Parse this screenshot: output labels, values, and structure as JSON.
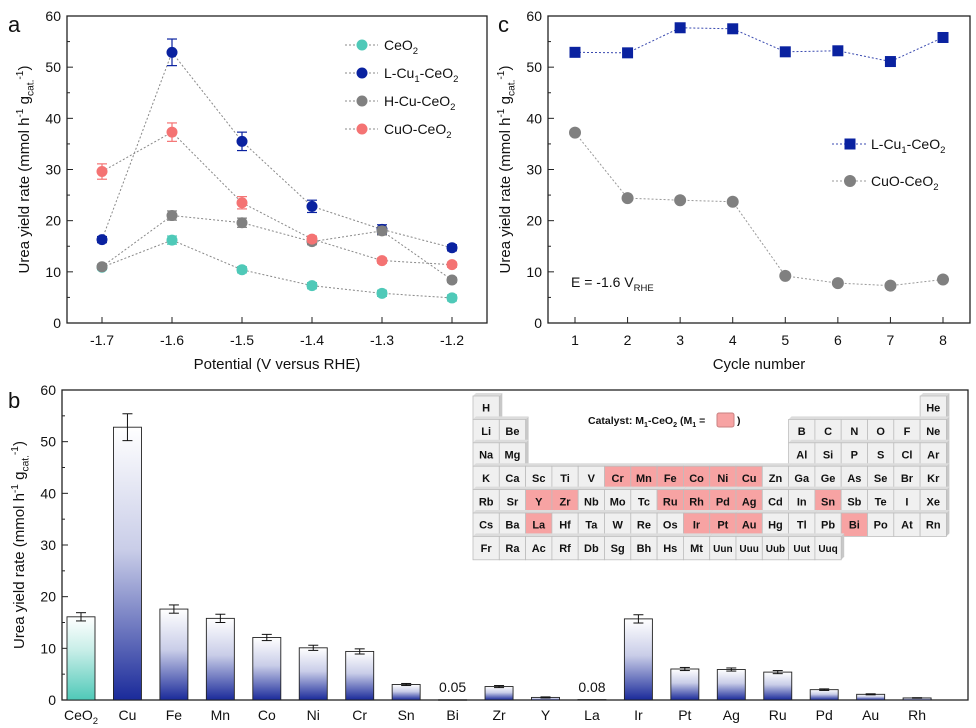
{
  "chart_data": [
    {
      "panel": "a",
      "type": "line",
      "xlabel": "Potential (V versus RHE)",
      "ylabel": "Urea yield rate (mmol h^{-1} g_{cat.}^{-1})",
      "x": [
        -1.7,
        -1.6,
        -1.5,
        -1.4,
        -1.3,
        -1.2
      ],
      "xticks": [
        "-1.7",
        "-1.6",
        "-1.5",
        "-1.4",
        "-1.3",
        "-1.2"
      ],
      "xlim": [
        -1.75,
        -1.15
      ],
      "ylim": [
        0,
        60
      ],
      "yticks": [
        "0",
        "10",
        "20",
        "30",
        "40",
        "50",
        "60"
      ],
      "legend": "top-right",
      "series": [
        {
          "name": "CeO_{2}",
          "color": "#4fc9b8",
          "values": [
            10.9,
            16.2,
            10.4,
            7.3,
            5.8,
            4.9
          ],
          "errors": [
            0.5,
            0.8,
            0.6,
            0.6,
            0.6,
            0.6
          ]
        },
        {
          "name": "L-Cu_{1}-CeO_{2}",
          "color": "#0a22a0",
          "values": [
            16.3,
            52.9,
            35.5,
            22.8,
            18.3,
            14.7
          ],
          "errors": [
            0.6,
            2.6,
            1.8,
            1.2,
            0.9,
            0.6
          ]
        },
        {
          "name": "H-Cu-CeO_{2}",
          "color": "#808080",
          "values": [
            11.0,
            21.0,
            19.6,
            15.9,
            18.0,
            8.4
          ],
          "errors": [
            0.5,
            0.9,
            0.9,
            0.6,
            0.8,
            0.5
          ]
        },
        {
          "name": "CuO-CeO_{2}",
          "color": "#f47373",
          "values": [
            29.6,
            37.3,
            23.5,
            16.4,
            12.2,
            11.4
          ],
          "errors": [
            1.5,
            1.8,
            1.2,
            0.6,
            0.5,
            0.5
          ]
        }
      ]
    },
    {
      "panel": "c",
      "type": "line",
      "xlabel": "Cycle number",
      "ylabel": "Urea yield rate (mmol h^{-1} g_{cat.}^{-1})",
      "x": [
        1,
        2,
        3,
        4,
        5,
        6,
        7,
        8
      ],
      "xticks": [
        "1",
        "2",
        "3",
        "4",
        "5",
        "6",
        "7",
        "8"
      ],
      "xlim": [
        0.5,
        8.5
      ],
      "ylim": [
        0,
        60
      ],
      "yticks": [
        "0",
        "10",
        "20",
        "30",
        "40",
        "50",
        "60"
      ],
      "annotation": "E = -1.6 V_{RHE}",
      "legend": "right",
      "series": [
        {
          "name": "L-Cu_{1}-CeO_{2}",
          "color": "#0a22a0",
          "marker": "square",
          "values": [
            52.9,
            52.8,
            57.7,
            57.5,
            53.0,
            53.2,
            51.1,
            55.8
          ]
        },
        {
          "name": "CuO-CeO_{2}",
          "color": "#808080",
          "marker": "circle",
          "values": [
            37.2,
            24.4,
            24.0,
            23.7,
            9.2,
            7.8,
            7.3,
            8.5
          ]
        }
      ]
    },
    {
      "panel": "b",
      "type": "bar",
      "ylabel": "Urea yield rate (mmol h^{-1} g_{cat.}^{-1})",
      "ylim": [
        0,
        60
      ],
      "yticks": [
        "0",
        "10",
        "20",
        "30",
        "40",
        "50",
        "60"
      ],
      "categories": [
        "CeO_{2}",
        "Cu",
        "Fe",
        "Mn",
        "Co",
        "Ni",
        "Cr",
        "Sn",
        "Bi",
        "Zr",
        "Y",
        "La",
        "Ir",
        "Pt",
        "Ag",
        "Ru",
        "Pd",
        "Au",
        "Rh"
      ],
      "values": [
        16.1,
        52.8,
        17.6,
        15.8,
        12.1,
        10.1,
        9.4,
        3.0,
        0.05,
        2.6,
        0.5,
        0.08,
        15.7,
        6.0,
        5.9,
        5.4,
        2.0,
        1.1,
        0.4
      ],
      "errors": [
        0.8,
        2.6,
        0.8,
        0.8,
        0.6,
        0.5,
        0.5,
        0.2,
        0,
        0.2,
        0.1,
        0,
        0.8,
        0.3,
        0.3,
        0.3,
        0.15,
        0.1,
        0.05
      ],
      "data_labels": {
        "8": "0.05",
        "11": "0.08"
      },
      "bar_colors": {
        "CeO_{2}": "#4fc9b8",
        "default": "#1a2a9a"
      }
    }
  ],
  "periodic_table": {
    "caption": "Catalyst: M_{1}-CeO_{2} (M_{1} = ",
    "caption_end": ")",
    "highlight_color": "#f7a3a3",
    "rows": [
      [
        "H",
        null,
        null,
        null,
        null,
        null,
        null,
        null,
        null,
        null,
        null,
        null,
        null,
        null,
        null,
        null,
        null,
        "He"
      ],
      [
        "Li",
        "Be",
        null,
        null,
        null,
        null,
        null,
        null,
        null,
        null,
        null,
        null,
        "B",
        "C",
        "N",
        "O",
        "F",
        "Ne"
      ],
      [
        "Na",
        "Mg",
        null,
        null,
        null,
        null,
        null,
        null,
        null,
        null,
        null,
        null,
        "Al",
        "Si",
        "P",
        "S",
        "Cl",
        "Ar"
      ],
      [
        "K",
        "Ca",
        "Sc",
        "Ti",
        "V",
        "Cr",
        "Mn",
        "Fe",
        "Co",
        "Ni",
        "Cu",
        "Zn",
        "Ga",
        "Ge",
        "As",
        "Se",
        "Br",
        "Kr"
      ],
      [
        "Rb",
        "Sr",
        "Y",
        "Zr",
        "Nb",
        "Mo",
        "Tc",
        "Ru",
        "Rh",
        "Pd",
        "Ag",
        "Cd",
        "In",
        "Sn",
        "Sb",
        "Te",
        "I",
        "Xe"
      ],
      [
        "Cs",
        "Ba",
        "La",
        "Hf",
        "Ta",
        "W",
        "Re",
        "Os",
        "Ir",
        "Pt",
        "Au",
        "Hg",
        "Tl",
        "Pb",
        "Bi",
        "Po",
        "At",
        "Rn"
      ],
      [
        "Fr",
        "Ra",
        "Ac",
        "Rf",
        "Db",
        "Sg",
        "Bh",
        "Hs",
        "Mt",
        "Uun",
        "Uuu",
        "Uub",
        "Uut",
        "Uuq",
        null,
        null,
        null,
        null
      ]
    ],
    "highlighted": [
      "Cr",
      "Mn",
      "Fe",
      "Co",
      "Ni",
      "Cu",
      "Y",
      "Zr",
      "Ru",
      "Rh",
      "Pd",
      "Ag",
      "Sn",
      "La",
      "Ir",
      "Pt",
      "Au",
      "Bi"
    ]
  },
  "panel_labels": {
    "a": "a",
    "b": "b",
    "c": "c"
  }
}
